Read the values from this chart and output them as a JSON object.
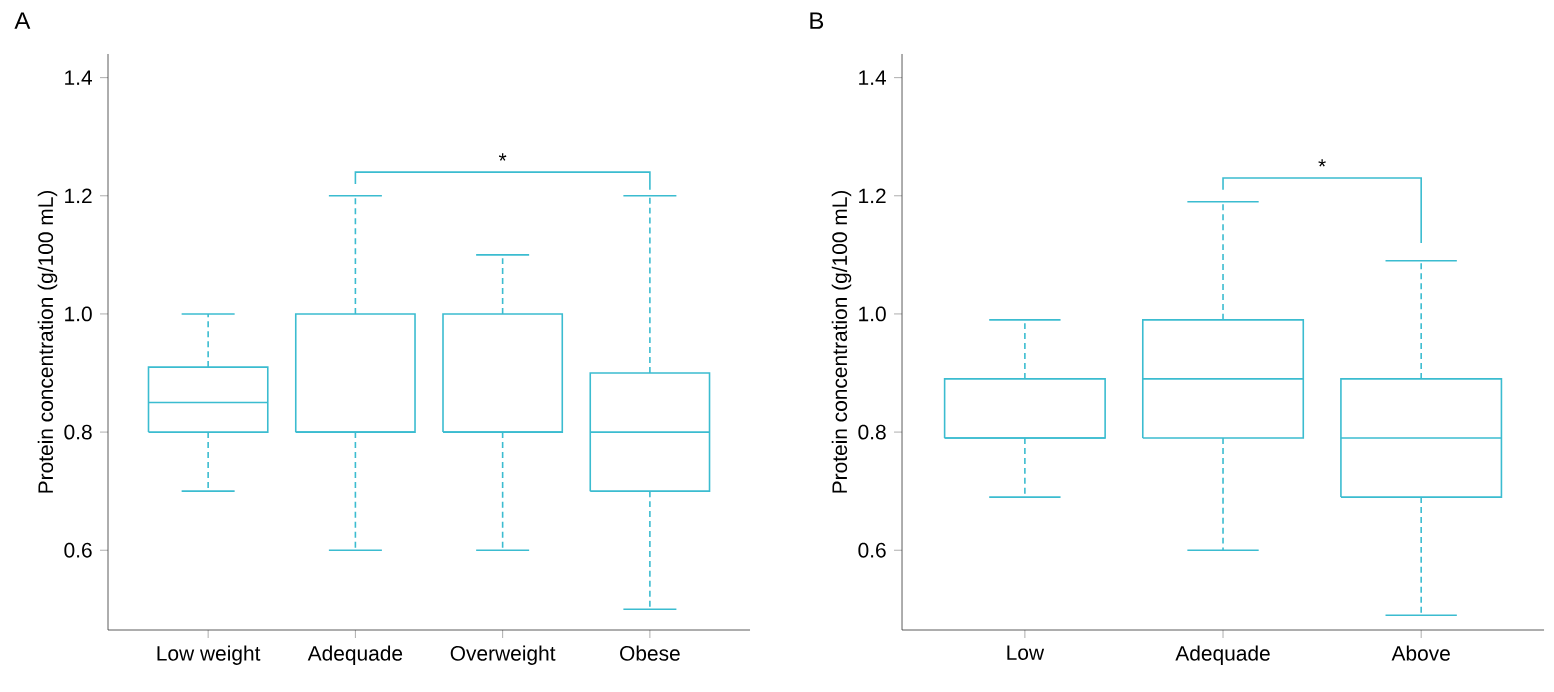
{
  "chart_data": [
    {
      "type": "box",
      "title": "A",
      "ylabel": "Protein concentration (g/100 mL)",
      "categories": [
        "Low weight",
        "Adequade",
        "Overweight",
        "Obese"
      ],
      "color": "#3bbcd0",
      "boxes": [
        {
          "low": 0.7,
          "q1": 0.8,
          "median": 0.85,
          "q3": 0.91,
          "high": 1.0
        },
        {
          "low": 0.6,
          "q1": 0.8,
          "median": 0.8,
          "q3": 1.0,
          "high": 1.2
        },
        {
          "low": 0.6,
          "q1": 0.8,
          "median": 0.8,
          "q3": 1.0,
          "high": 1.1
        },
        {
          "low": 0.5,
          "q1": 0.7,
          "median": 0.8,
          "q3": 0.9,
          "high": 1.2
        }
      ],
      "ylim": [
        0.465,
        1.44
      ],
      "yticks": [
        0.6,
        0.8,
        {
          "value": 1,
          "label": "1.0"
        },
        1.2,
        1.4
      ],
      "annotations": [
        "*"
      ]
    },
    {
      "type": "box",
      "title": "B",
      "ylabel": "Protein concentration (g/100 mL)",
      "categories": [
        "Low",
        "Adequade",
        "Above"
      ],
      "color": "#3bbcd0",
      "boxes": [
        {
          "low": 0.69,
          "q1": 0.79,
          "median": 0.79,
          "q3": 0.89,
          "high": 0.99
        },
        {
          "low": 0.6,
          "q1": 0.79,
          "median": 0.89,
          "q3": 0.99,
          "high": 1.19
        },
        {
          "low": 0.49,
          "q1": 0.69,
          "median": 0.79,
          "q3": 0.89,
          "high": 1.09
        }
      ],
      "ylim": [
        0.465,
        1.44
      ],
      "yticks": [
        0.6,
        0.8,
        {
          "value": 1,
          "label": "1.0"
        },
        1.2,
        1.4
      ],
      "annotations": [
        "*"
      ]
    }
  ]
}
